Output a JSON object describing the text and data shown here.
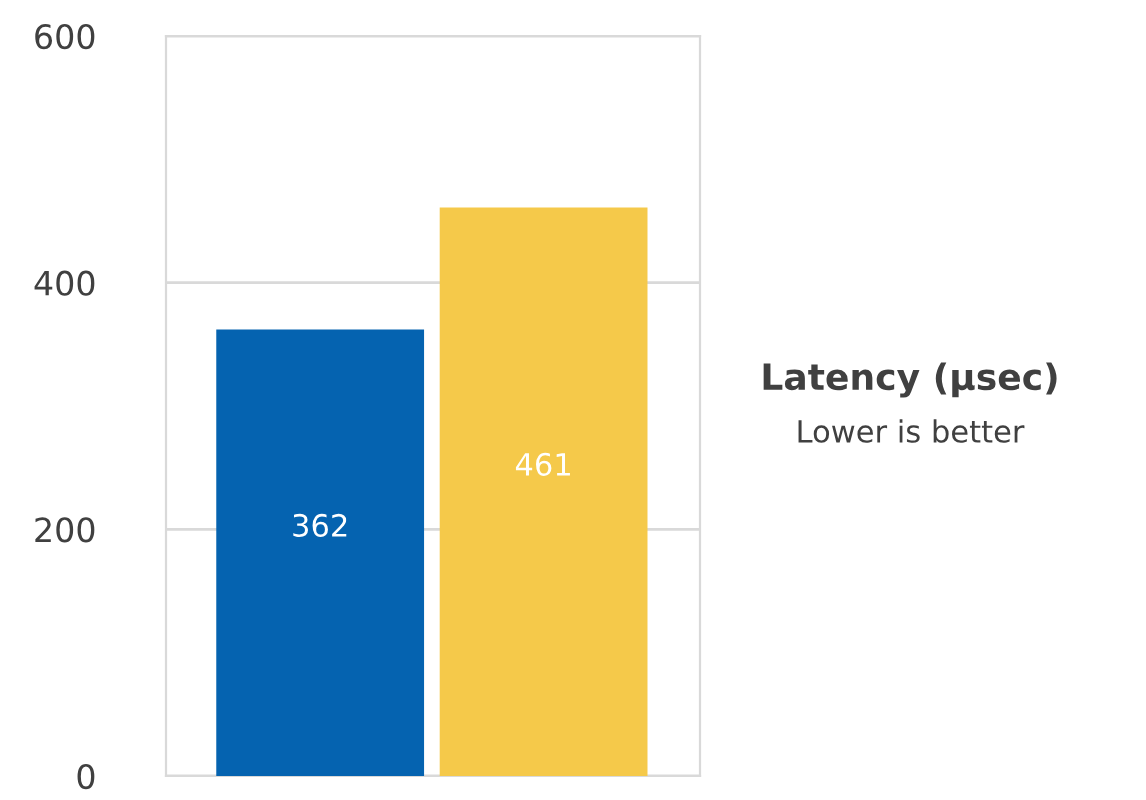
{
  "chart_data": {
    "type": "bar",
    "title": "Latency (µsec)",
    "subtitle": "Lower is better",
    "categories": [
      null,
      null
    ],
    "values": [
      362,
      461
    ],
    "colors": [
      "#0563b0",
      "#f5c94a"
    ],
    "ylim": [
      0,
      600
    ],
    "yticks": [
      0,
      200,
      400,
      600
    ],
    "grid": "y",
    "data_labels": true
  }
}
